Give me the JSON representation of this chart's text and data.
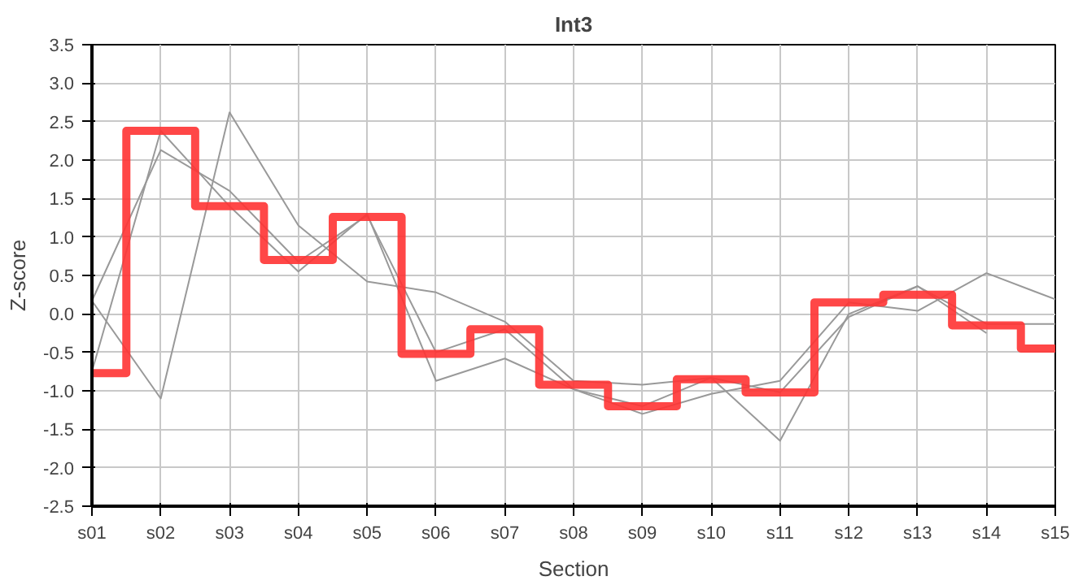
{
  "chart_data": {
    "type": "line",
    "title": "Int3",
    "xlabel": "Section",
    "ylabel": "Z-score",
    "categories": [
      "s01",
      "s02",
      "s03",
      "s04",
      "s05",
      "s06",
      "s07",
      "s08",
      "s09",
      "s10",
      "s11",
      "s12",
      "s13",
      "s14",
      "s15"
    ],
    "ylim": [
      -2.5,
      3.5
    ],
    "yticks": [
      {
        "value": -2.5,
        "label": "-2.5"
      },
      {
        "value": -2,
        "label": "-2.0"
      },
      {
        "value": -1.5,
        "label": "-1.5"
      },
      {
        "value": -1,
        "label": "-1.0"
      },
      {
        "value": -0.5,
        "label": "-0.5"
      },
      {
        "value": 0,
        "label": "0.0"
      },
      {
        "value": 0.5,
        "label": "0.5"
      },
      {
        "value": 1,
        "label": "1.0"
      },
      {
        "value": 1.5,
        "label": "1.5"
      },
      {
        "value": 2,
        "label": "2.0"
      },
      {
        "value": 2.5,
        "label": "2.5"
      },
      {
        "value": 3,
        "label": "3.0"
      },
      {
        "value": 3.5,
        "label": "3.5"
      }
    ],
    "grid": true,
    "marker": "none",
    "line_style": "solid",
    "series": [
      {
        "color": "#999999",
        "values": [
          0.17,
          -1.1,
          2.62,
          1.15,
          0.42,
          0.28,
          -0.1,
          -0.87,
          -0.92,
          -0.83,
          -1.65,
          0.0,
          0.36,
          -0.13,
          -0.13
        ]
      },
      {
        "color": "#999999",
        "values": [
          -0.75,
          2.38,
          1.4,
          0.55,
          1.3,
          -0.87,
          -0.58,
          -0.98,
          -1.3,
          -1.04,
          -0.87,
          0.15,
          0.04,
          0.53,
          0.19
        ]
      },
      {
        "color": "#999999",
        "values": [
          0.17,
          2.13,
          1.6,
          0.68,
          1.28,
          -0.5,
          -0.2,
          -0.98,
          -1.2,
          -0.83,
          -1.02,
          -0.04,
          0.36,
          -0.25,
          null
        ]
      },
      {
        "type": "step",
        "color": "#ff3333",
        "values": [
          -0.77,
          2.38,
          1.4,
          0.7,
          1.26,
          -0.52,
          -0.2,
          -0.92,
          -1.2,
          -0.85,
          -1.02,
          0.15,
          0.25,
          -0.15,
          -0.45
        ]
      }
    ]
  }
}
